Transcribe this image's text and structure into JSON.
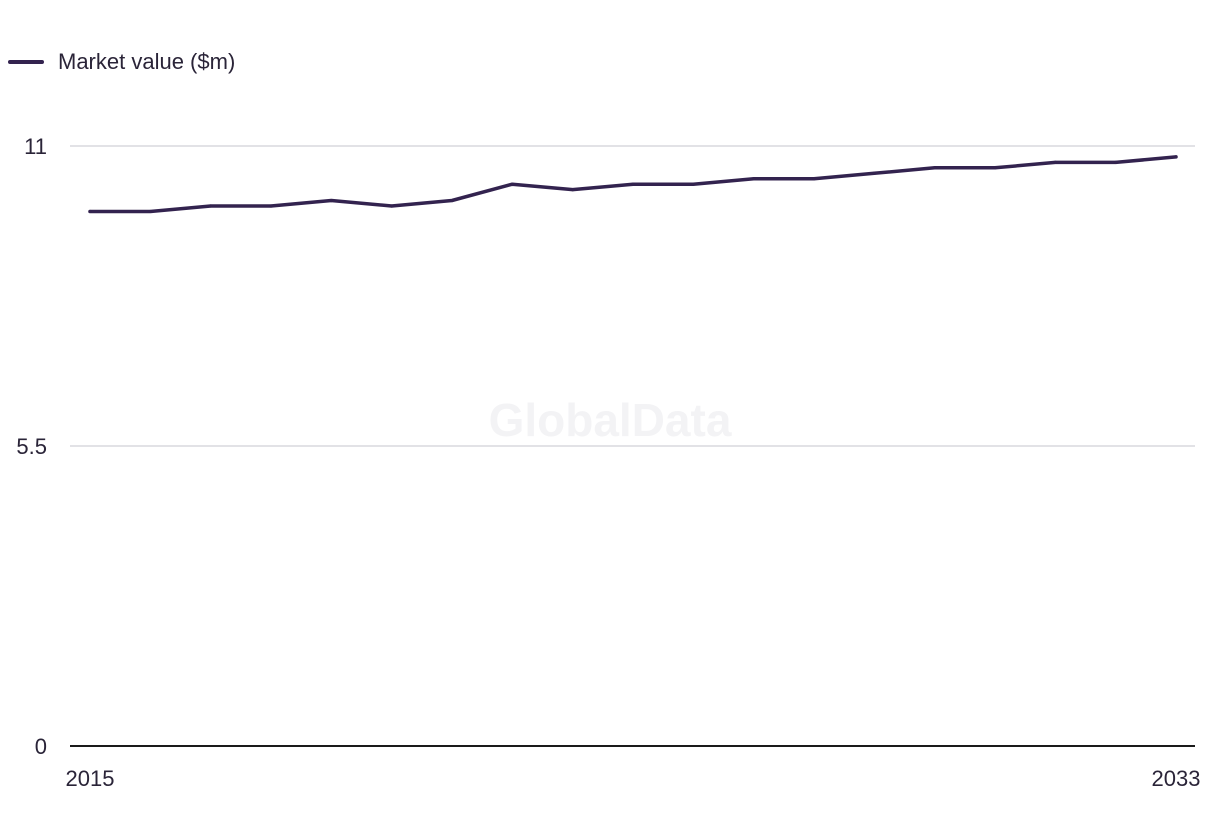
{
  "chart_data": {
    "type": "line",
    "x": [
      2015,
      2016,
      2017,
      2018,
      2019,
      2020,
      2021,
      2022,
      2023,
      2024,
      2025,
      2026,
      2027,
      2028,
      2029,
      2030,
      2031,
      2032,
      2033
    ],
    "series": [
      {
        "name": "Market value ($m)",
        "values": [
          9.8,
          9.8,
          9.9,
          9.9,
          10.0,
          9.9,
          10.0,
          10.3,
          10.2,
          10.3,
          10.3,
          10.4,
          10.4,
          10.5,
          10.6,
          10.6,
          10.7,
          10.7,
          10.8
        ],
        "color": "#33234f"
      }
    ],
    "ylim": [
      0,
      11
    ],
    "yticks": [
      {
        "value": 0,
        "label": "0"
      },
      {
        "value": 5.5,
        "label": "5.5"
      },
      {
        "value": 11,
        "label": "11"
      }
    ],
    "xticks": [
      {
        "value": 2015,
        "label": "2015"
      },
      {
        "value": 2033,
        "label": "2033"
      }
    ],
    "grid": true,
    "legend": "top-left",
    "watermark": "GlobalData",
    "gridColor": "#d9d9dd",
    "axisColor": "#1a1a1a"
  }
}
